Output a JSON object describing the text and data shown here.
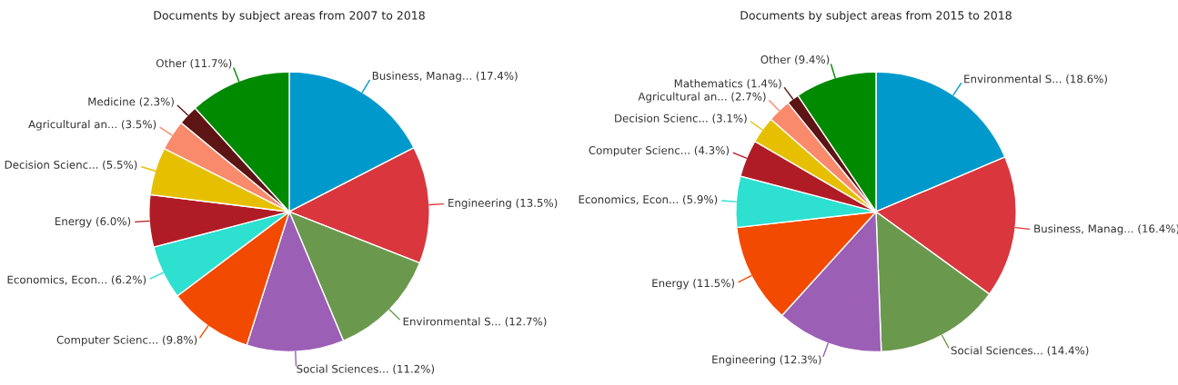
{
  "chart_data": [
    {
      "type": "pie",
      "title": "Documents by subject areas from 2007 to 2018",
      "categories": [
        "Business, Manag...",
        "Engineering",
        "Environmental S...",
        "Social Sciences...",
        "Computer Scienc...",
        "Economics, Econ...",
        "Energy",
        "Decision Scienc...",
        "Agricultural an...",
        "Medicine",
        "Other"
      ],
      "values": [
        17.4,
        13.5,
        12.7,
        11.2,
        9.8,
        6.2,
        6.0,
        5.5,
        3.5,
        2.3,
        11.7
      ],
      "value_labels": [
        "(17.4%)",
        "(13.5%)",
        "(12.7%)",
        "(11.2%)",
        "(9.8%)",
        "(6.2%)",
        "(6.0%)",
        "(5.5%)",
        "(3.5%)",
        "(2.3%)",
        "(11.7%)"
      ],
      "colors": [
        "#0099cc",
        "#d9363e",
        "#6a994e",
        "#9b5fb5",
        "#f24a00",
        "#2de0d0",
        "#b01c26",
        "#e6c000",
        "#f98a6c",
        "#5c1414",
        "#008a00"
      ]
    },
    {
      "type": "pie",
      "title": "Documents by subject areas from 2015 to 2018",
      "categories": [
        "Environmental S...",
        "Business, Manag...",
        "Social Sciences...",
        "Engineering",
        "Energy",
        "Economics, Econ...",
        "Computer Scienc...",
        "Decision Scienc...",
        "Agricultural an...",
        "Mathematics",
        "Other"
      ],
      "values": [
        18.6,
        16.4,
        14.4,
        12.3,
        11.5,
        5.9,
        4.3,
        3.1,
        2.7,
        1.4,
        9.4
      ],
      "value_labels": [
        "(18.6%)",
        "(16.4%)",
        "(14.4%)",
        "(12.3%)",
        "(11.5%)",
        "(5.9%)",
        "(4.3%)",
        "(3.1%)",
        "(2.7%)",
        "(1.4%)",
        "(9.4%)"
      ],
      "colors": [
        "#0099cc",
        "#d9363e",
        "#6a994e",
        "#9b5fb5",
        "#f24a00",
        "#2de0d0",
        "#b01c26",
        "#e6c000",
        "#f98a6c",
        "#5c1414",
        "#008a00"
      ]
    }
  ]
}
